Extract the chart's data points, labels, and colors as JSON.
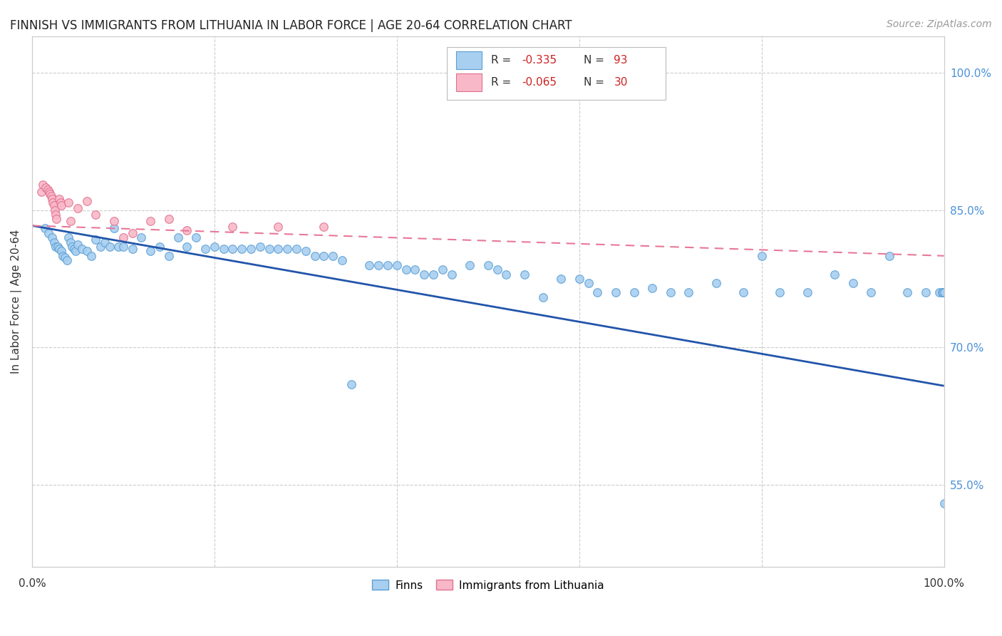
{
  "title": "FINNISH VS IMMIGRANTS FROM LITHUANIA IN LABOR FORCE | AGE 20-64 CORRELATION CHART",
  "source": "Source: ZipAtlas.com",
  "ylabel": "In Labor Force | Age 20-64",
  "xlim": [
    0.0,
    1.0
  ],
  "ylim": [
    0.46,
    1.04
  ],
  "x_ticks": [
    0.0,
    0.2,
    0.4,
    0.6,
    0.8,
    1.0
  ],
  "x_tick_labels": [
    "0.0%",
    "",
    "",
    "",
    "",
    "100.0%"
  ],
  "y_tick_labels_right": [
    "55.0%",
    "70.0%",
    "85.0%",
    "100.0%"
  ],
  "y_tick_values_right": [
    0.55,
    0.7,
    0.85,
    1.0
  ],
  "finn_color": "#a8cff0",
  "finn_edge_color": "#5a9fd4",
  "immig_color": "#f9b8c8",
  "immig_edge_color": "#e07090",
  "finn_line_color": "#2255aa",
  "immig_line_color": "#e87898",
  "finn_line_start_y": 0.833,
  "finn_line_end_y": 0.658,
  "immig_line_start_y": 0.833,
  "immig_line_end_y": 0.8,
  "R_finn": -0.335,
  "N_finn": 93,
  "R_immig": -0.065,
  "N_immig": 30,
  "background_color": "#ffffff",
  "grid_color": "#cccccc",
  "finn_scatter_x": [
    0.014,
    0.018,
    0.022,
    0.024,
    0.026,
    0.028,
    0.03,
    0.032,
    0.034,
    0.036,
    0.038,
    0.04,
    0.042,
    0.044,
    0.046,
    0.048,
    0.05,
    0.055,
    0.06,
    0.065,
    0.07,
    0.075,
    0.08,
    0.085,
    0.09,
    0.095,
    0.1,
    0.11,
    0.12,
    0.13,
    0.14,
    0.15,
    0.16,
    0.17,
    0.18,
    0.19,
    0.2,
    0.21,
    0.22,
    0.23,
    0.24,
    0.25,
    0.26,
    0.27,
    0.28,
    0.29,
    0.3,
    0.31,
    0.32,
    0.33,
    0.34,
    0.35,
    0.37,
    0.38,
    0.39,
    0.4,
    0.41,
    0.42,
    0.43,
    0.44,
    0.45,
    0.46,
    0.48,
    0.5,
    0.51,
    0.52,
    0.54,
    0.56,
    0.58,
    0.6,
    0.61,
    0.62,
    0.64,
    0.66,
    0.68,
    0.7,
    0.72,
    0.75,
    0.78,
    0.8,
    0.82,
    0.85,
    0.88,
    0.9,
    0.92,
    0.94,
    0.96,
    0.98,
    0.995,
    0.998,
    0.999,
    1.0,
    1.0
  ],
  "finn_scatter_y": [
    0.83,
    0.825,
    0.82,
    0.815,
    0.81,
    0.81,
    0.808,
    0.805,
    0.8,
    0.798,
    0.795,
    0.82,
    0.815,
    0.81,
    0.808,
    0.805,
    0.812,
    0.808,
    0.805,
    0.8,
    0.818,
    0.81,
    0.815,
    0.81,
    0.83,
    0.81,
    0.81,
    0.808,
    0.82,
    0.805,
    0.81,
    0.8,
    0.82,
    0.81,
    0.82,
    0.808,
    0.81,
    0.808,
    0.808,
    0.808,
    0.808,
    0.81,
    0.808,
    0.808,
    0.808,
    0.808,
    0.805,
    0.8,
    0.8,
    0.8,
    0.795,
    0.66,
    0.79,
    0.79,
    0.79,
    0.79,
    0.785,
    0.785,
    0.78,
    0.78,
    0.785,
    0.78,
    0.79,
    0.79,
    0.785,
    0.78,
    0.78,
    0.755,
    0.775,
    0.775,
    0.77,
    0.76,
    0.76,
    0.76,
    0.765,
    0.76,
    0.76,
    0.77,
    0.76,
    0.8,
    0.76,
    0.76,
    0.78,
    0.77,
    0.76,
    0.8,
    0.76,
    0.76,
    0.76,
    0.76,
    0.76,
    0.76,
    0.53
  ],
  "immig_scatter_x": [
    0.01,
    0.012,
    0.015,
    0.017,
    0.019,
    0.02,
    0.021,
    0.022,
    0.023,
    0.024,
    0.025,
    0.026,
    0.027,
    0.03,
    0.031,
    0.032,
    0.04,
    0.042,
    0.05,
    0.06,
    0.07,
    0.09,
    0.1,
    0.11,
    0.13,
    0.15,
    0.17,
    0.22,
    0.27,
    0.32
  ],
  "immig_scatter_y": [
    0.87,
    0.878,
    0.875,
    0.872,
    0.87,
    0.868,
    0.865,
    0.862,
    0.858,
    0.855,
    0.85,
    0.845,
    0.84,
    0.862,
    0.858,
    0.855,
    0.858,
    0.838,
    0.852,
    0.86,
    0.845,
    0.838,
    0.82,
    0.825,
    0.838,
    0.84,
    0.828,
    0.832,
    0.832,
    0.832
  ]
}
